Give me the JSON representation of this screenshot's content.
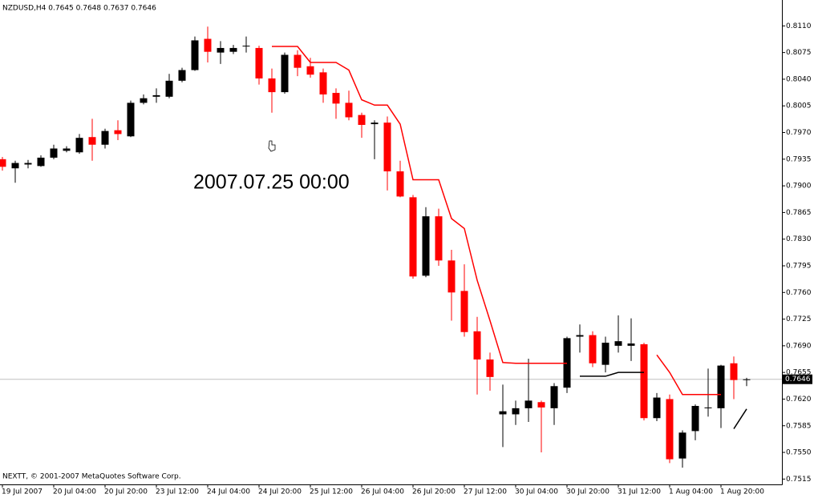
{
  "chart_data": {
    "type": "candlestick",
    "title": "NZDUSD,H4  0.7645 0.7648 0.7637 0.7646",
    "annotation": "2007.07.25 00:00",
    "footer": "NEXTT, © 2001-2007 MetaQuotes Software Corp.",
    "categories": [
      "19 Jul 2007",
      null,
      null,
      null,
      "20 Jul 04:00",
      null,
      null,
      null,
      "20 Jul 20:00",
      null,
      null,
      null,
      "23 Jul 12:00",
      null,
      null,
      null,
      "24 Jul 04:00",
      null,
      null,
      null,
      "24 Jul 20:00",
      null,
      null,
      null,
      "25 Jul 12:00",
      null,
      null,
      null,
      "26 Jul 04:00",
      null,
      null,
      null,
      "26 Jul 20:00",
      null,
      null,
      null,
      "27 Jul 12:00",
      null,
      null,
      null,
      "30 Jul 04:00",
      null,
      null,
      null,
      "30 Jul 20:00",
      null,
      null,
      null,
      "31 Jul 12:00",
      null,
      null,
      null,
      "1 Aug 04:00",
      null,
      null,
      null,
      "1 Aug 20:00",
      null,
      null
    ],
    "open": [
      0.7935,
      0.7923,
      0.7928,
      0.7926,
      0.7937,
      0.7946,
      0.7944,
      0.7964,
      0.7954,
      0.7973,
      0.7965,
      0.8009,
      0.8017,
      0.8017,
      0.8038,
      0.8052,
      0.8093,
      0.8075,
      0.8076,
      0.8083,
      0.8081,
      0.8041,
      0.8023,
      0.8072,
      0.8057,
      0.8049,
      0.8022,
      0.8009,
      0.7993,
      0.7981,
      0.7983,
      0.7919,
      0.7885,
      0.7782,
      0.786,
      0.7802,
      0.7762,
      0.7709,
      0.7672,
      0.76,
      0.76,
      0.7608,
      0.7616,
      0.7608,
      0.7635,
      0.7702,
      0.7704,
      0.7665,
      0.769,
      0.769,
      0.7692,
      0.7595,
      0.762,
      0.7542,
      0.7578,
      0.7608,
      0.7608,
      0.7667,
      0.7645
    ],
    "high": [
      0.7938,
      0.7933,
      0.7934,
      0.794,
      0.7954,
      0.7952,
      0.7968,
      0.7988,
      0.7975,
      0.7986,
      0.8012,
      0.802,
      0.8028,
      0.8047,
      0.8055,
      0.8096,
      0.8109,
      0.809,
      0.8085,
      0.8096,
      0.8084,
      0.8054,
      0.8075,
      0.8078,
      0.8068,
      0.8054,
      0.8028,
      0.8025,
      0.7996,
      0.7986,
      0.7991,
      0.7933,
      0.7888,
      0.7872,
      0.787,
      0.7816,
      0.7797,
      0.7728,
      0.7681,
      0.7639,
      0.7618,
      0.7673,
      0.7618,
      0.7641,
      0.7702,
      0.7718,
      0.7709,
      0.7702,
      0.773,
      0.7726,
      0.7694,
      0.7628,
      0.7626,
      0.7579,
      0.7613,
      0.766,
      0.7665,
      0.7676,
      0.7648
    ],
    "low": [
      0.792,
      0.7904,
      0.7923,
      0.7925,
      0.7935,
      0.7944,
      0.7942,
      0.7933,
      0.7949,
      0.796,
      0.7964,
      0.8007,
      0.8009,
      0.8015,
      0.8036,
      0.8051,
      0.8062,
      0.806,
      0.8073,
      0.8075,
      0.8033,
      0.7996,
      0.8021,
      0.8044,
      0.8042,
      0.8009,
      0.7988,
      0.7986,
      0.7963,
      0.7935,
      0.7894,
      0.7885,
      0.7778,
      0.778,
      0.7795,
      0.7723,
      0.7702,
      0.7626,
      0.7631,
      0.7557,
      0.7586,
      0.759,
      0.755,
      0.7586,
      0.7628,
      0.7681,
      0.7662,
      0.7655,
      0.7681,
      0.767,
      0.7592,
      0.7591,
      0.7536,
      0.753,
      0.7566,
      0.7597,
      0.7582,
      0.762,
      0.7637
    ],
    "close": [
      0.7925,
      0.793,
      0.793,
      0.7937,
      0.7949,
      0.7949,
      0.7963,
      0.7954,
      0.7972,
      0.7968,
      0.8009,
      0.8015,
      0.8019,
      0.8038,
      0.8052,
      0.8091,
      0.8076,
      0.8081,
      0.8081,
      0.8084,
      0.8041,
      0.8023,
      0.8072,
      0.8055,
      0.8046,
      0.802,
      0.8008,
      0.799,
      0.798,
      0.7983,
      0.7919,
      0.7886,
      0.7781,
      0.786,
      0.7802,
      0.776,
      0.7708,
      0.7672,
      0.7649,
      0.7604,
      0.7608,
      0.7618,
      0.7609,
      0.7637,
      0.77,
      0.7704,
      0.7667,
      0.7694,
      0.7696,
      0.7693,
      0.7595,
      0.7622,
      0.7541,
      0.7576,
      0.7611,
      0.7609,
      0.7664,
      0.7645,
      0.7646
    ],
    "up_color": "#000000",
    "down_color": "#ff0000",
    "lines": [
      {
        "color": "#ff0000",
        "values": [
          null,
          null,
          null,
          null,
          null,
          null,
          null,
          null,
          null,
          null,
          null,
          null,
          null,
          null,
          null,
          null,
          null,
          null,
          null,
          null,
          null,
          0.8083,
          0.8083,
          0.8083,
          0.8062,
          0.8062,
          0.8062,
          0.8052,
          0.8013,
          0.8006,
          0.8006,
          0.7981,
          0.7908,
          0.7908,
          0.7908,
          0.7857,
          0.7844,
          0.7776,
          0.7723,
          0.7668,
          0.7667,
          0.7667,
          0.7667,
          0.7667,
          0.7667,
          null,
          null,
          null,
          null,
          null,
          null,
          0.7678,
          0.7655,
          0.7626,
          0.7626,
          0.7626,
          0.7626,
          null,
          null
        ]
      },
      {
        "color": "#000000",
        "values": [
          null,
          null,
          null,
          null,
          null,
          null,
          null,
          null,
          null,
          null,
          null,
          null,
          null,
          null,
          null,
          null,
          null,
          null,
          null,
          null,
          null,
          null,
          null,
          null,
          null,
          null,
          null,
          null,
          null,
          null,
          null,
          null,
          null,
          null,
          null,
          null,
          null,
          null,
          null,
          null,
          null,
          null,
          null,
          null,
          null,
          0.765,
          0.765,
          0.765,
          0.7655,
          0.7655,
          0.7655,
          null,
          null,
          null,
          null,
          null,
          null,
          0.7581,
          0.7607
        ]
      }
    ],
    "last_price": 0.7646,
    "ylim": [
      0.7508,
      0.8144
    ],
    "yticks": [
      {
        "value": 0.811,
        "label": "0.8110"
      },
      0.8075,
      {
        "value": 0.804,
        "label": "0.8040"
      },
      0.8005,
      {
        "value": 0.797,
        "label": "0.7970"
      },
      0.7935,
      {
        "value": 0.79,
        "label": "0.7900"
      },
      0.7865,
      {
        "value": 0.783,
        "label": "0.7830"
      },
      0.7795,
      {
        "value": 0.776,
        "label": "0.7760"
      },
      0.7725,
      {
        "value": 0.769,
        "label": "0.7690"
      },
      0.7655,
      {
        "value": 0.762,
        "label": "0.7620"
      },
      0.7585,
      {
        "value": 0.755,
        "label": "0.7550"
      },
      0.7515
    ]
  }
}
